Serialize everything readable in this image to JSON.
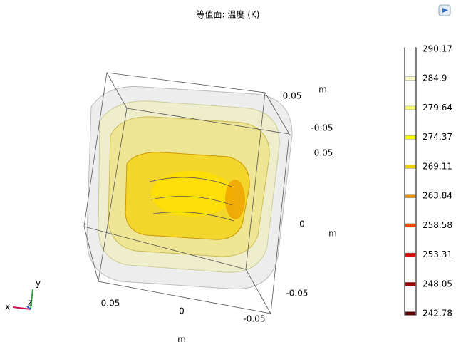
{
  "title": "等值面: 温度 (K)",
  "axis_labels": [
    "0.05",
    "-0.05",
    "0.05",
    "m",
    "0",
    "m",
    "-0.05",
    "0.05",
    "0",
    "-0.05",
    "m"
  ],
  "triad": {
    "x": "x",
    "y": "y",
    "z": "z"
  },
  "legend": {
    "levels": [
      290.17,
      284.9,
      279.64,
      274.37,
      269.11,
      263.84,
      258.58,
      253.31,
      248.05,
      242.78
    ],
    "colors": [
      "#ffffff",
      "#ffffc8",
      "#ffff70",
      "#ffff00",
      "#f0d000",
      "#f09000",
      "#ff4400",
      "#e00000",
      "#a00000",
      "#600000"
    ]
  }
}
